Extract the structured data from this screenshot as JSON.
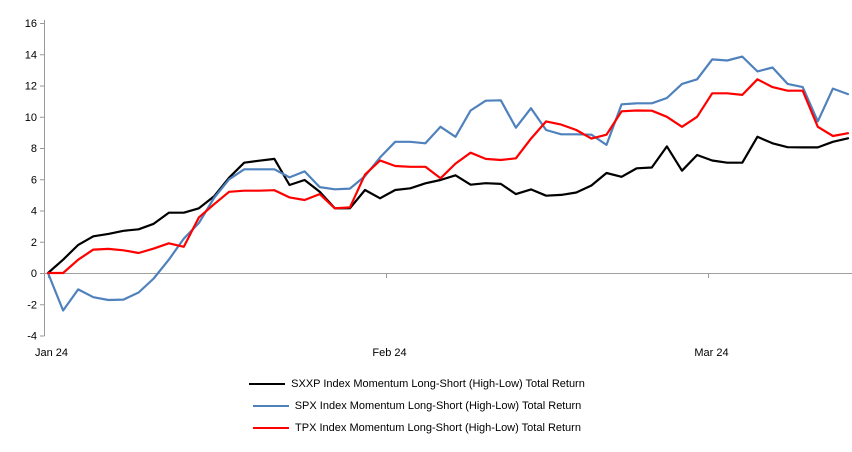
{
  "chart_data": {
    "type": "line",
    "title": "",
    "grid": "zero-line-only",
    "legend_position": "bottom",
    "x_axis": {
      "tick_labels": [
        "Jan 24",
        "Feb 24",
        "Mar 24"
      ],
      "tick_indices": [
        0,
        22.4,
        43.7
      ]
    },
    "y_axis": {
      "min": -4,
      "max": 16,
      "step": 2,
      "ticks": [
        16,
        14,
        12,
        10,
        8,
        6,
        4,
        2,
        0,
        -2,
        -4
      ]
    },
    "series": [
      {
        "name": "SXXP Index Momentum Long-Short (High-Low) Total Return",
        "color": "#000000",
        "values": [
          0.0,
          0.85,
          1.8,
          2.35,
          2.5,
          2.7,
          2.8,
          3.15,
          3.86,
          3.86,
          4.14,
          4.9,
          6.1,
          7.06,
          7.19,
          7.3,
          5.63,
          5.95,
          5.2,
          4.14,
          4.14,
          5.31,
          4.78,
          5.31,
          5.42,
          5.74,
          5.95,
          6.25,
          5.65,
          5.75,
          5.7,
          5.05,
          5.35,
          4.95,
          5.0,
          5.15,
          5.6,
          6.4,
          6.16,
          6.7,
          6.75,
          8.1,
          6.55,
          7.55,
          7.2,
          7.06,
          7.06,
          8.72,
          8.3,
          8.05,
          8.04,
          8.04,
          8.4,
          8.62
        ]
      },
      {
        "name": "SPX Index Momentum Long-Short (High-Low) Total Return",
        "color": "#4f81bd",
        "values": [
          0.0,
          -2.4,
          -1.05,
          -1.55,
          -1.73,
          -1.7,
          -1.25,
          -0.35,
          0.85,
          2.2,
          3.2,
          4.8,
          6.0,
          6.64,
          6.64,
          6.64,
          6.12,
          6.5,
          5.5,
          5.36,
          5.4,
          6.2,
          7.4,
          8.4,
          8.4,
          8.3,
          9.36,
          8.72,
          10.4,
          11.03,
          11.05,
          9.3,
          10.55,
          9.15,
          8.88,
          8.88,
          8.85,
          8.2,
          10.8,
          10.86,
          10.86,
          11.2,
          12.1,
          12.4,
          13.67,
          13.6,
          13.85,
          12.9,
          13.15,
          12.1,
          11.9,
          9.7,
          11.8,
          11.45
        ]
      },
      {
        "name": "TPX Index Momentum Long-Short (High-Low) Total Return",
        "color": "#ff0000",
        "values": [
          0.0,
          0.0,
          0.85,
          1.5,
          1.54,
          1.45,
          1.28,
          1.56,
          1.9,
          1.68,
          3.56,
          4.4,
          5.2,
          5.27,
          5.27,
          5.3,
          4.84,
          4.67,
          5.05,
          4.14,
          4.2,
          6.3,
          7.2,
          6.85,
          6.8,
          6.8,
          6.06,
          7.0,
          7.7,
          7.3,
          7.23,
          7.34,
          8.6,
          9.7,
          9.5,
          9.15,
          8.6,
          8.85,
          10.35,
          10.4,
          10.39,
          10.0,
          9.36,
          10.0,
          11.5,
          11.5,
          11.4,
          12.4,
          11.9,
          11.67,
          11.67,
          9.36,
          8.77,
          8.95
        ]
      }
    ]
  },
  "colors": {
    "axis": "#999999",
    "zero_line": "#a0a0a0",
    "text": "#000000",
    "background": "#ffffff"
  }
}
